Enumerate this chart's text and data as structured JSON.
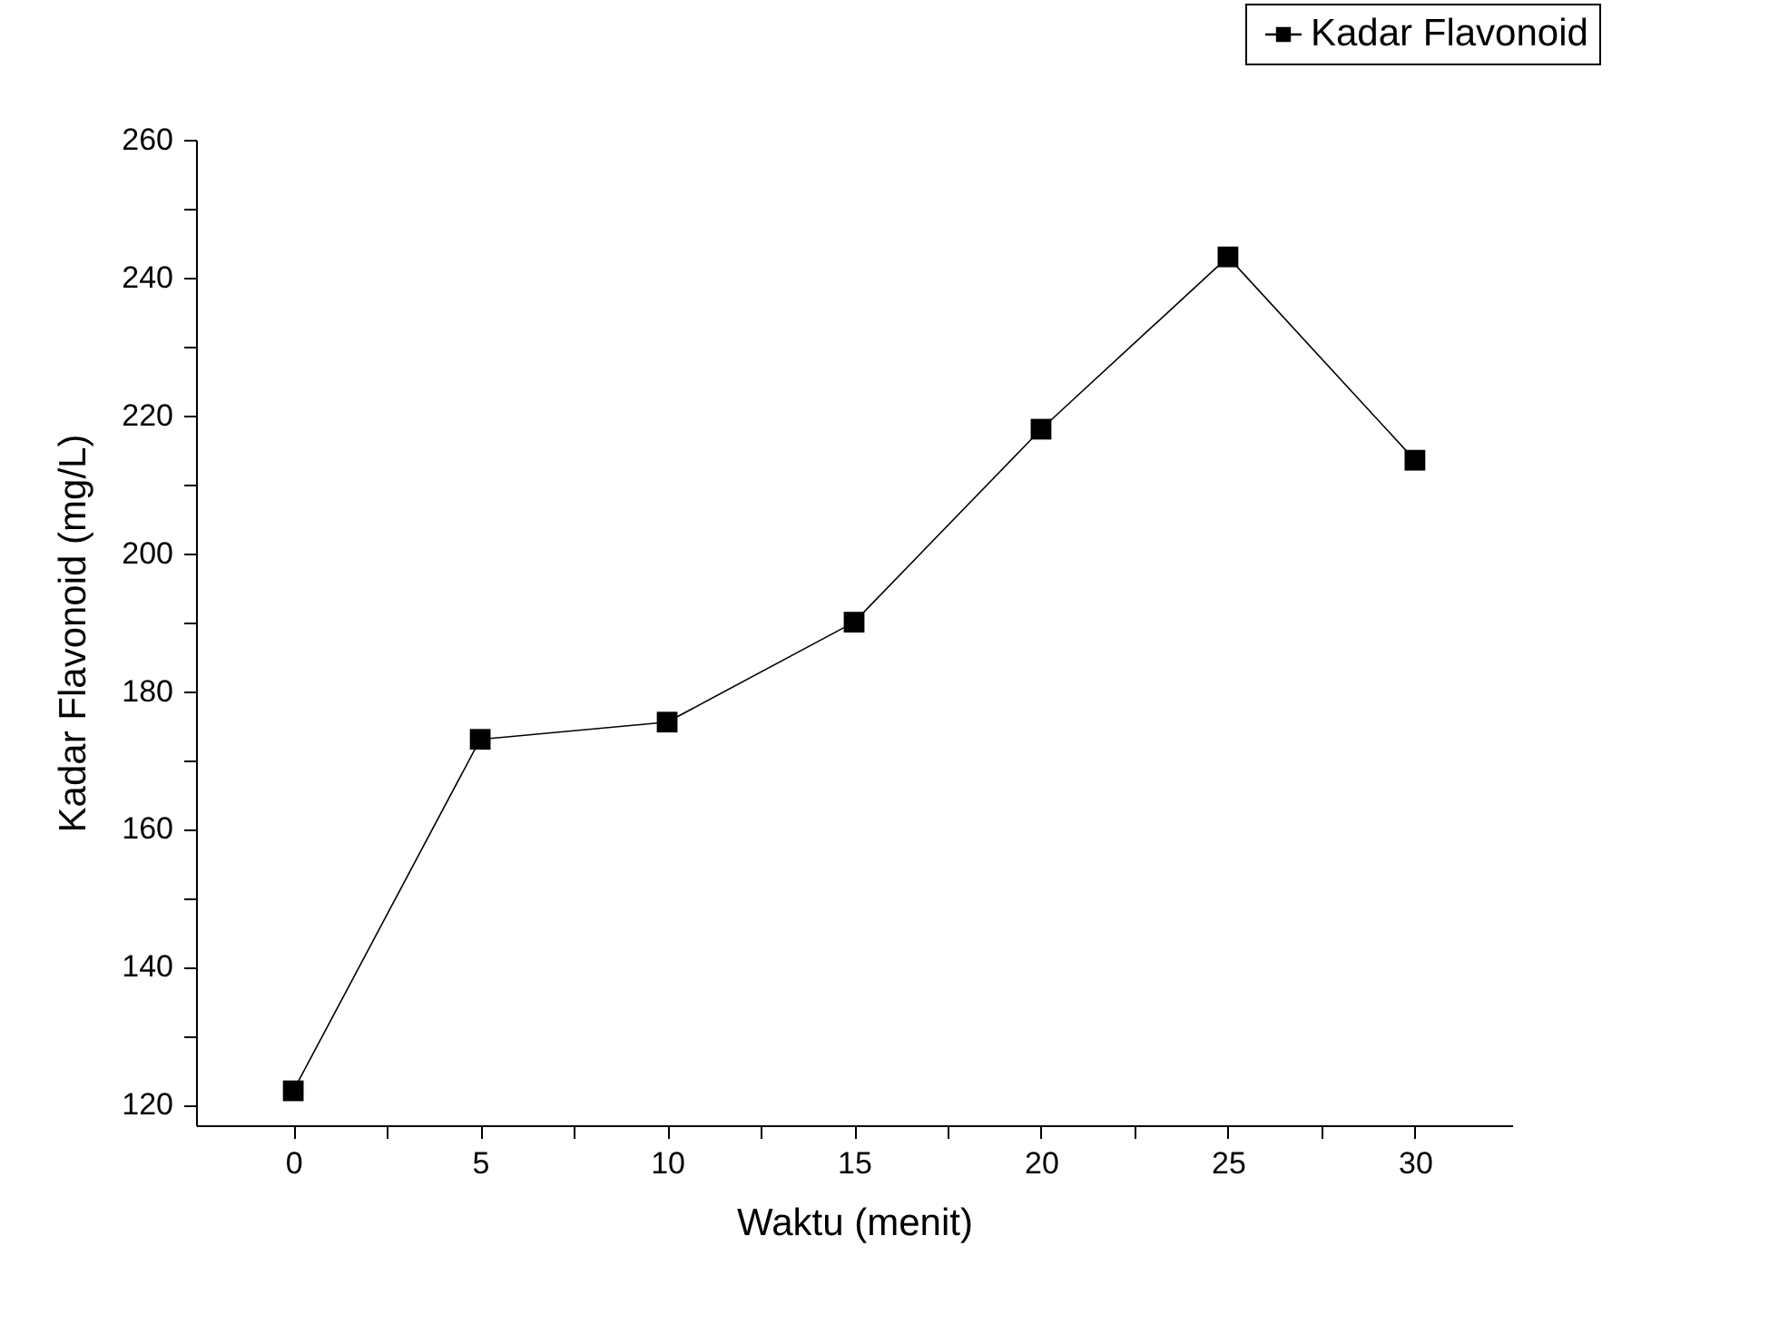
{
  "chart_data": {
    "type": "line",
    "xlabel": "Waktu (menit)",
    "ylabel": "Kadar Flavonoid (mg/L)",
    "x": [
      0,
      5,
      10,
      15,
      20,
      25,
      30
    ],
    "series": [
      {
        "name": "Kadar Flavonoid",
        "color": "#000000",
        "values": [
          122,
          173,
          175.5,
          190,
          218,
          243,
          213.5
        ]
      }
    ],
    "xlim": [
      -2.6,
      32.6
    ],
    "xticks": [
      0,
      {
        "value": 2.5,
        "label": null
      },
      5,
      {
        "value": 7.5,
        "label": null
      },
      10,
      {
        "value": 12.5,
        "label": null
      },
      15,
      {
        "value": 17.5,
        "label": null
      },
      20,
      {
        "value": 22.5,
        "label": null
      },
      25,
      {
        "value": 27.5,
        "label": null
      },
      30
    ],
    "ylim": [
      117,
      260
    ],
    "yticks": [
      120,
      {
        "value": 130,
        "label": null
      },
      140,
      {
        "value": 150,
        "label": null
      },
      160,
      {
        "value": 170,
        "label": null
      },
      180,
      {
        "value": 190,
        "label": null
      },
      200,
      {
        "value": 210,
        "label": null
      },
      220,
      {
        "value": 230,
        "label": null
      },
      240,
      {
        "value": 250,
        "label": null
      },
      260
    ],
    "grid": false,
    "legend": "top right",
    "marker": "square",
    "line_style": "solid"
  }
}
